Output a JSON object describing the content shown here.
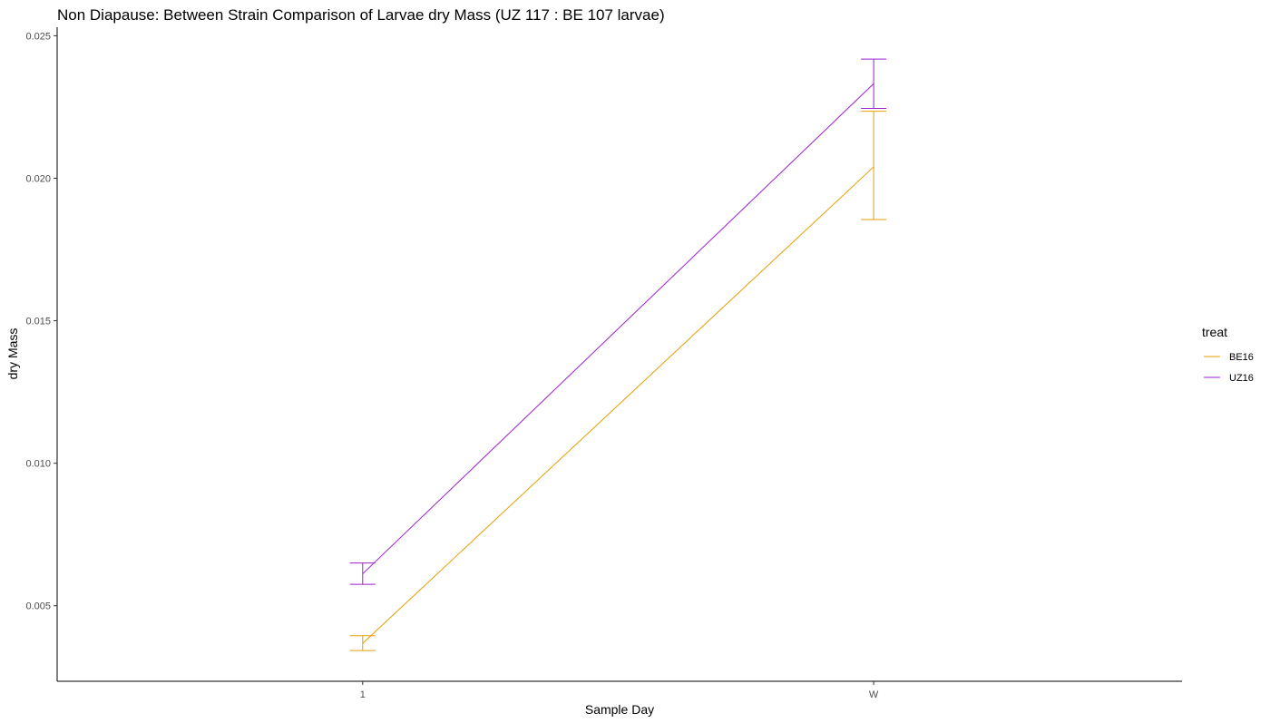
{
  "chart_data": {
    "type": "line",
    "title": "Non Diapause: Between Strain Comparison of Larvae dry Mass (UZ 117 : BE 107 larvae)",
    "xlabel": "Sample Day",
    "ylabel": "dry Mass",
    "categories": [
      "1",
      "W"
    ],
    "ylim": [
      0.00235,
      0.0253
    ],
    "yticks": [
      0.005,
      0.01,
      0.015,
      0.02,
      0.025
    ],
    "ytick_labels": [
      "0.005",
      "0.010",
      "0.015",
      "0.020",
      "0.025"
    ],
    "grid": false,
    "legend": {
      "title": "treat",
      "placement": "right"
    },
    "series": [
      {
        "name": "BE16",
        "color": "#E69F00",
        "values": [
          0.00368,
          0.0204
        ],
        "lower": [
          0.00343,
          0.01855
        ],
        "upper": [
          0.00395,
          0.02235
        ]
      },
      {
        "name": "UZ16",
        "color": "#9A1FD0",
        "values": [
          0.00612,
          0.02332
        ],
        "lower": [
          0.00575,
          0.02245
        ],
        "upper": [
          0.0065,
          0.02418
        ]
      }
    ]
  }
}
